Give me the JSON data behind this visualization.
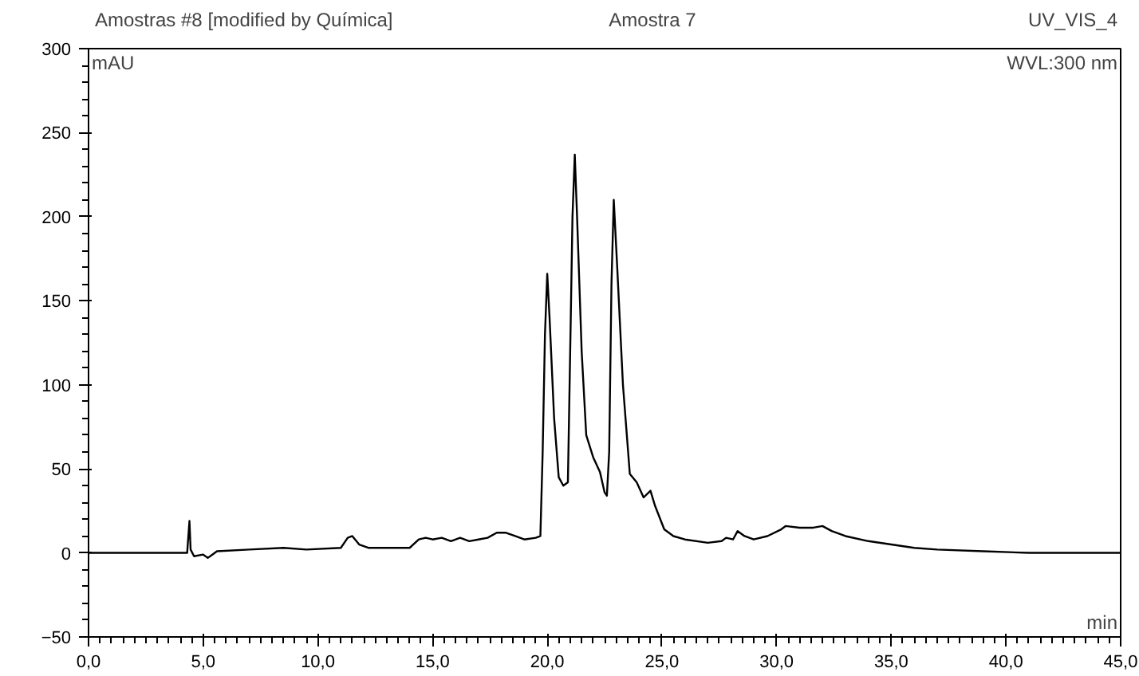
{
  "chart_data": {
    "type": "line",
    "title": "Amostra 7",
    "xlabel": "min",
    "ylabel": "mAU",
    "annotations": [
      "Amostras #8 [modified by Química]",
      "UV_VIS_4",
      "WVL:300 nm"
    ],
    "x": [
      0,
      4.3,
      4.4,
      4.45,
      4.6,
      5.0,
      5.2,
      5.4,
      5.6,
      7,
      8.5,
      9.5,
      11,
      11.3,
      11.5,
      11.8,
      12.2,
      14,
      14.4,
      14.7,
      15,
      15.4,
      15.8,
      16.2,
      16.6,
      17,
      17.4,
      17.8,
      18.2,
      18.6,
      19,
      19.5,
      19.7,
      19.8,
      19.9,
      20.0,
      20.1,
      20.3,
      20.5,
      20.7,
      20.9,
      21.0,
      21.1,
      21.2,
      21.3,
      21.5,
      21.7,
      22.0,
      22.3,
      22.5,
      22.6,
      22.7,
      22.8,
      22.9,
      23.05,
      23.3,
      23.6,
      23.9,
      24.2,
      24.5,
      24.7,
      25.1,
      25.5,
      26,
      27,
      27.6,
      27.8,
      28.1,
      28.3,
      28.6,
      29,
      29.6,
      30.2,
      30.4,
      31,
      31.6,
      32.0,
      32.4,
      33,
      34,
      35,
      36,
      37,
      39,
      41,
      45
    ],
    "series": [
      {
        "color": "#000000",
        "values": [
          0,
          0,
          19,
          2,
          -2,
          -1,
          -3,
          -1,
          1,
          2,
          3,
          2,
          3,
          9,
          10,
          5,
          3,
          3,
          8,
          9,
          8,
          9,
          7,
          9,
          7,
          8,
          9,
          12,
          12,
          10,
          8,
          9,
          10,
          60,
          130,
          166,
          140,
          80,
          45,
          40,
          42,
          120,
          200,
          237,
          200,
          120,
          70,
          57,
          48,
          36,
          34,
          60,
          160,
          210,
          170,
          100,
          47,
          42,
          33,
          37,
          28,
          14,
          10,
          8,
          6,
          7,
          9,
          8,
          13,
          10,
          8,
          10,
          14,
          16,
          15,
          15,
          16,
          13,
          10,
          7,
          5,
          3,
          2,
          1,
          0,
          0
        ]
      }
    ],
    "xlim": [
      0,
      45
    ],
    "ylim": [
      -50,
      300
    ],
    "xticks": [
      {
        "value": 0,
        "label": "0,0"
      },
      {
        "value": 5,
        "label": "5,0"
      },
      {
        "value": 10,
        "label": "10,0"
      },
      {
        "value": 15,
        "label": "15,0"
      },
      {
        "value": 20,
        "label": "20,0"
      },
      {
        "value": 25,
        "label": "25,0"
      },
      {
        "value": 30,
        "label": "30,0"
      },
      {
        "value": 35,
        "label": "35,0"
      },
      {
        "value": 40,
        "label": "40,0"
      },
      {
        "value": 45,
        "label": "45,0"
      }
    ],
    "yticks": [
      -50,
      0,
      50,
      100,
      150,
      200,
      250,
      300
    ],
    "grid": false,
    "marker": "none",
    "line_style": "solid"
  }
}
